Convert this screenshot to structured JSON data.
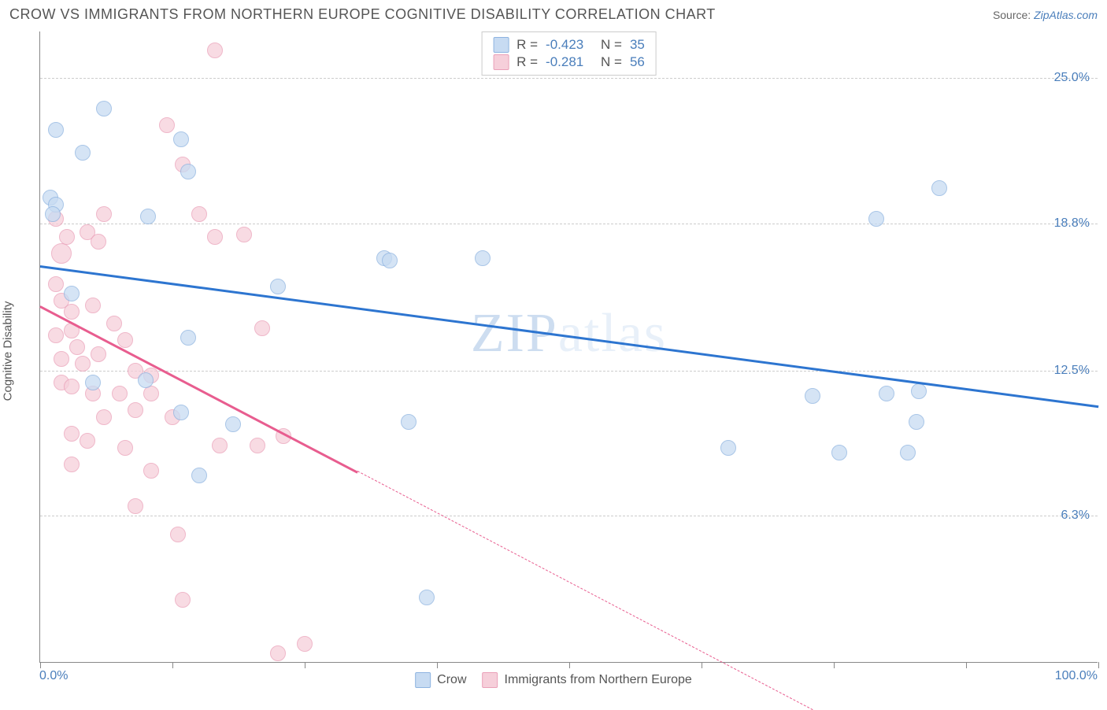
{
  "title": "CROW VS IMMIGRANTS FROM NORTHERN EUROPE COGNITIVE DISABILITY CORRELATION CHART",
  "source_prefix": "Source: ",
  "source_link": "ZipAtlas.com",
  "ylabel": "Cognitive Disability",
  "watermark": "ZIPatlas",
  "watermark_colors": [
    "#cdddf0",
    "#e8f0f9"
  ],
  "chart": {
    "type": "scatter",
    "background_color": "#ffffff",
    "grid_color": "#cccccc",
    "axis_color": "#888888",
    "xlim": [
      0,
      100
    ],
    "ylim": [
      0,
      27
    ],
    "yticks": [
      {
        "v": 6.3,
        "label": "6.3%"
      },
      {
        "v": 12.5,
        "label": "12.5%"
      },
      {
        "v": 18.8,
        "label": "18.8%"
      },
      {
        "v": 25.0,
        "label": "25.0%"
      }
    ],
    "xticks_major": [
      0,
      25,
      50,
      75,
      100
    ],
    "xticks_minor": [
      12.5,
      37.5,
      62.5,
      87.5
    ],
    "xlabels": [
      {
        "v": 0,
        "label": "0.0%"
      },
      {
        "v": 100,
        "label": "100.0%"
      }
    ],
    "marker_radius": 10,
    "marker_radius_large": 13,
    "series": [
      {
        "name": "Crow",
        "fill": "#c7dbf2",
        "stroke": "#8db3e0",
        "fill_opacity": 0.75,
        "R": "-0.423",
        "N": "35",
        "trend": {
          "x1": 0,
          "y1": 17.0,
          "x2": 100,
          "y2": 11.0,
          "color": "#2d75d0"
        },
        "points": [
          [
            1.5,
            22.8
          ],
          [
            6.0,
            23.7
          ],
          [
            4.0,
            21.8
          ],
          [
            13.3,
            22.4
          ],
          [
            14.0,
            21.0
          ],
          [
            1.0,
            19.9
          ],
          [
            1.5,
            19.6
          ],
          [
            1.2,
            19.2
          ],
          [
            10.2,
            19.1
          ],
          [
            22.5,
            16.1
          ],
          [
            3.0,
            15.8
          ],
          [
            14.0,
            13.9
          ],
          [
            5.0,
            12.0
          ],
          [
            10.0,
            12.1
          ],
          [
            13.3,
            10.7
          ],
          [
            18.2,
            10.2
          ],
          [
            34.8,
            10.3
          ],
          [
            15.0,
            8.0
          ],
          [
            36.5,
            2.8
          ],
          [
            32.5,
            17.3
          ],
          [
            33.0,
            17.2
          ],
          [
            41.8,
            17.3
          ],
          [
            65.0,
            9.2
          ],
          [
            73.0,
            11.4
          ],
          [
            80.0,
            11.5
          ],
          [
            83.0,
            11.6
          ],
          [
            75.5,
            9.0
          ],
          [
            82.0,
            9.0
          ],
          [
            82.8,
            10.3
          ],
          [
            79.0,
            19.0
          ],
          [
            85.0,
            20.3
          ]
        ]
      },
      {
        "name": "Immigrants from Northern Europe",
        "fill": "#f6cfda",
        "stroke": "#eaa0b8",
        "fill_opacity": 0.75,
        "R": "-0.281",
        "N": "56",
        "trend": {
          "x1": 0,
          "y1": 15.3,
          "x2": 30,
          "y2": 8.2,
          "x3": 73,
          "y3": -2.0,
          "color": "#e85d8f"
        },
        "points": [
          [
            16.5,
            26.2
          ],
          [
            12.0,
            23.0
          ],
          [
            13.5,
            21.3
          ],
          [
            1.5,
            19.0
          ],
          [
            6.0,
            19.2
          ],
          [
            15.0,
            19.2
          ],
          [
            4.5,
            18.4
          ],
          [
            2.0,
            17.5,
            13
          ],
          [
            2.5,
            18.2
          ],
          [
            5.5,
            18.0
          ],
          [
            16.5,
            18.2
          ],
          [
            19.3,
            18.3
          ],
          [
            1.5,
            16.2
          ],
          [
            2.0,
            15.5
          ],
          [
            3.0,
            15.0
          ],
          [
            5.0,
            15.3
          ],
          [
            1.5,
            14.0
          ],
          [
            3.0,
            14.2
          ],
          [
            3.5,
            13.5
          ],
          [
            7.0,
            14.5
          ],
          [
            8.0,
            13.8
          ],
          [
            21.0,
            14.3
          ],
          [
            2.0,
            13.0
          ],
          [
            4.0,
            12.8
          ],
          [
            5.5,
            13.2
          ],
          [
            9.0,
            12.5
          ],
          [
            10.5,
            12.3
          ],
          [
            2.0,
            12.0
          ],
          [
            3.0,
            11.8
          ],
          [
            5.0,
            11.5
          ],
          [
            7.5,
            11.5
          ],
          [
            10.5,
            11.5
          ],
          [
            6.0,
            10.5
          ],
          [
            9.0,
            10.8
          ],
          [
            12.5,
            10.5
          ],
          [
            3.0,
            9.8
          ],
          [
            4.5,
            9.5
          ],
          [
            8.0,
            9.2
          ],
          [
            17.0,
            9.3
          ],
          [
            20.5,
            9.3
          ],
          [
            23.0,
            9.7
          ],
          [
            3.0,
            8.5
          ],
          [
            10.5,
            8.2
          ],
          [
            9.0,
            6.7
          ],
          [
            13.0,
            5.5
          ],
          [
            13.5,
            2.7
          ],
          [
            22.5,
            0.4
          ],
          [
            25.0,
            0.8
          ]
        ]
      }
    ]
  },
  "legend_bottom": [
    {
      "swatch_fill": "#c7dbf2",
      "swatch_stroke": "#8db3e0",
      "label": "Crow"
    },
    {
      "swatch_fill": "#f6cfda",
      "swatch_stroke": "#eaa0b8",
      "label": "Immigrants from Northern Europe"
    }
  ]
}
